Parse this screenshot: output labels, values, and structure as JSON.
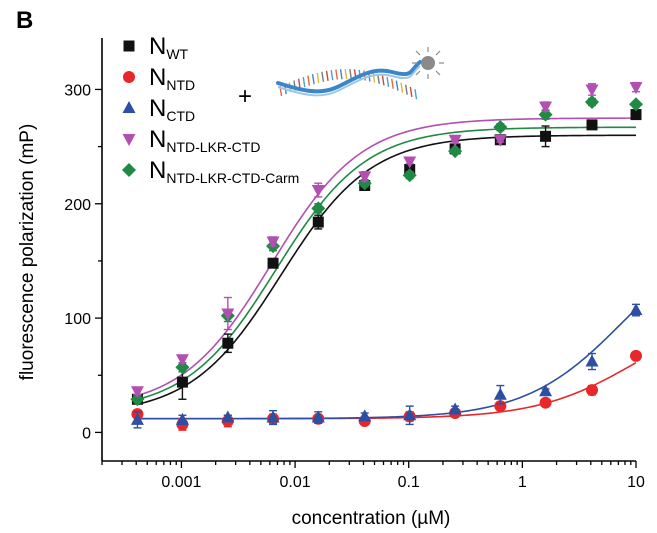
{
  "panel_label": "B",
  "plus_sign": "+",
  "chart_data": {
    "type": "scatter",
    "xlabel": "concentration (µM)",
    "ylabel": "fluorescence polarization (mP)",
    "x_scale": "log",
    "xlim": [
      0.0002,
      10
    ],
    "ylim": [
      -25,
      345
    ],
    "grid": false,
    "legend_position": "top-left",
    "x_ticks": [
      0.001,
      0.01,
      0.1,
      1,
      10
    ],
    "x_tick_labels": [
      "0.001",
      "0.01",
      "0.1",
      "1",
      "10"
    ],
    "y_ticks": [
      0,
      100,
      200,
      300
    ],
    "y_tick_labels": [
      "0",
      "100",
      "200",
      "300"
    ],
    "x": [
      0.00041,
      0.00102,
      0.00256,
      0.0064,
      0.016,
      0.041,
      0.102,
      0.256,
      0.64,
      1.6,
      4.1,
      10
    ],
    "series": [
      {
        "name_main": "N",
        "name_sub": "WT",
        "color": "#111111",
        "marker": "square",
        "y": [
          29,
          44,
          78,
          148,
          184,
          216,
          230,
          248,
          256,
          259,
          269,
          278
        ],
        "err": [
          4,
          15,
          8,
          4,
          6,
          4,
          4,
          3,
          3,
          9,
          3,
          4
        ],
        "fit": {
          "bottom": 15,
          "top": 260,
          "ec50": 0.0075,
          "hill": 1.1
        }
      },
      {
        "name_main": "N",
        "name_sub": "NTD",
        "color": "#e8272a",
        "marker": "circle",
        "y": [
          16,
          7,
          10,
          12,
          12,
          10,
          14,
          17,
          23,
          26,
          37,
          67
        ],
        "err": [
          2,
          5,
          5,
          4,
          3,
          3,
          4,
          2,
          2,
          3,
          4,
          2
        ],
        "fit": {
          "bottom": 12,
          "top": 110,
          "ec50": 10,
          "hill": 1
        }
      },
      {
        "name_main": "N",
        "name_sub": "CTD",
        "color": "#2d4fa3",
        "marker": "triangle-up",
        "y": [
          11,
          11,
          13,
          13,
          13,
          14,
          15,
          20,
          33,
          36,
          62,
          107
        ],
        "err": [
          7,
          4,
          2,
          6,
          5,
          3,
          8,
          3,
          8,
          2,
          7,
          5
        ],
        "fit": {
          "bottom": 12,
          "top": 185,
          "ec50": 8,
          "hill": 1
        }
      },
      {
        "name_main": "N",
        "name_sub": "NTD-LKR-CTD",
        "color": "#b34fb3",
        "marker": "triangle-down",
        "y": [
          36,
          64,
          104,
          167,
          212,
          224,
          237,
          256,
          256,
          285,
          300,
          302
        ],
        "err": [
          3,
          3,
          14,
          4,
          6,
          4,
          2,
          2,
          2,
          4,
          5,
          4
        ],
        "fit": {
          "bottom": 20,
          "top": 275,
          "ec50": 0.0062,
          "hill": 1.1
        }
      },
      {
        "name_main": "N",
        "name_sub": "NTD-LKR-CTD-Carm",
        "color": "#1f8a44",
        "marker": "diamond",
        "y": [
          29,
          57,
          102,
          163,
          196,
          218,
          225,
          246,
          267,
          278,
          289,
          287
        ],
        "err": [
          3,
          4,
          5,
          4,
          4,
          3,
          3,
          2,
          3,
          4,
          3,
          2
        ],
        "fit": {
          "bottom": 18,
          "top": 267,
          "ec50": 0.0068,
          "hill": 1.1
        }
      }
    ]
  }
}
